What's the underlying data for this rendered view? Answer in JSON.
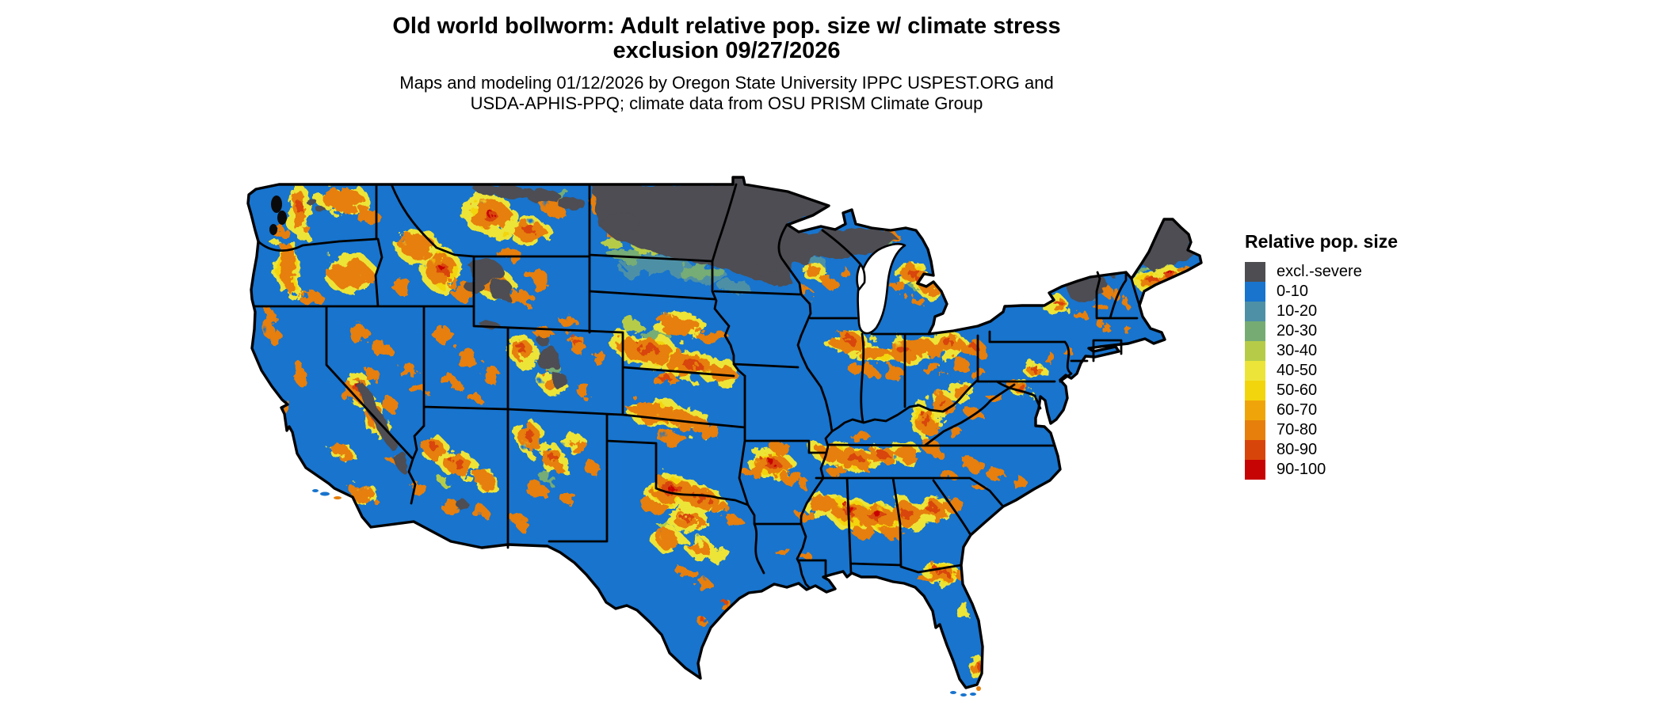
{
  "title": {
    "line1": "Old world bollworm: Adult relative pop. size w/ climate stress",
    "line2": "exclusion 09/27/2026"
  },
  "subtitle": {
    "line1": "Maps and modeling 01/12/2026 by Oregon State University IPPC USPEST.ORG and",
    "line2": "USDA-APHIS-PPQ; climate data from OSU PRISM Climate Group"
  },
  "legend": {
    "title": "Relative pop. size",
    "items": [
      {
        "label": "excl.-severe",
        "color": "#4D4D52"
      },
      {
        "label": "0-10",
        "color": "#1874CD"
      },
      {
        "label": "10-20",
        "color": "#4E90A6"
      },
      {
        "label": "20-30",
        "color": "#76AC74"
      },
      {
        "label": "30-40",
        "color": "#B6CC49"
      },
      {
        "label": "40-50",
        "color": "#EDE439"
      },
      {
        "label": "50-60",
        "color": "#F3D50E"
      },
      {
        "label": "60-70",
        "color": "#EFA50A"
      },
      {
        "label": "70-80",
        "color": "#E67F0B"
      },
      {
        "label": "80-90",
        "color": "#D8450A"
      },
      {
        "label": "90-100",
        "color": "#C70404"
      }
    ]
  },
  "map": {
    "region": "Continental United States",
    "background": "#FFFFFF",
    "base_fill_class": "0-10",
    "state_border_color": "#000000",
    "water_color": "#FFFFFF"
  }
}
